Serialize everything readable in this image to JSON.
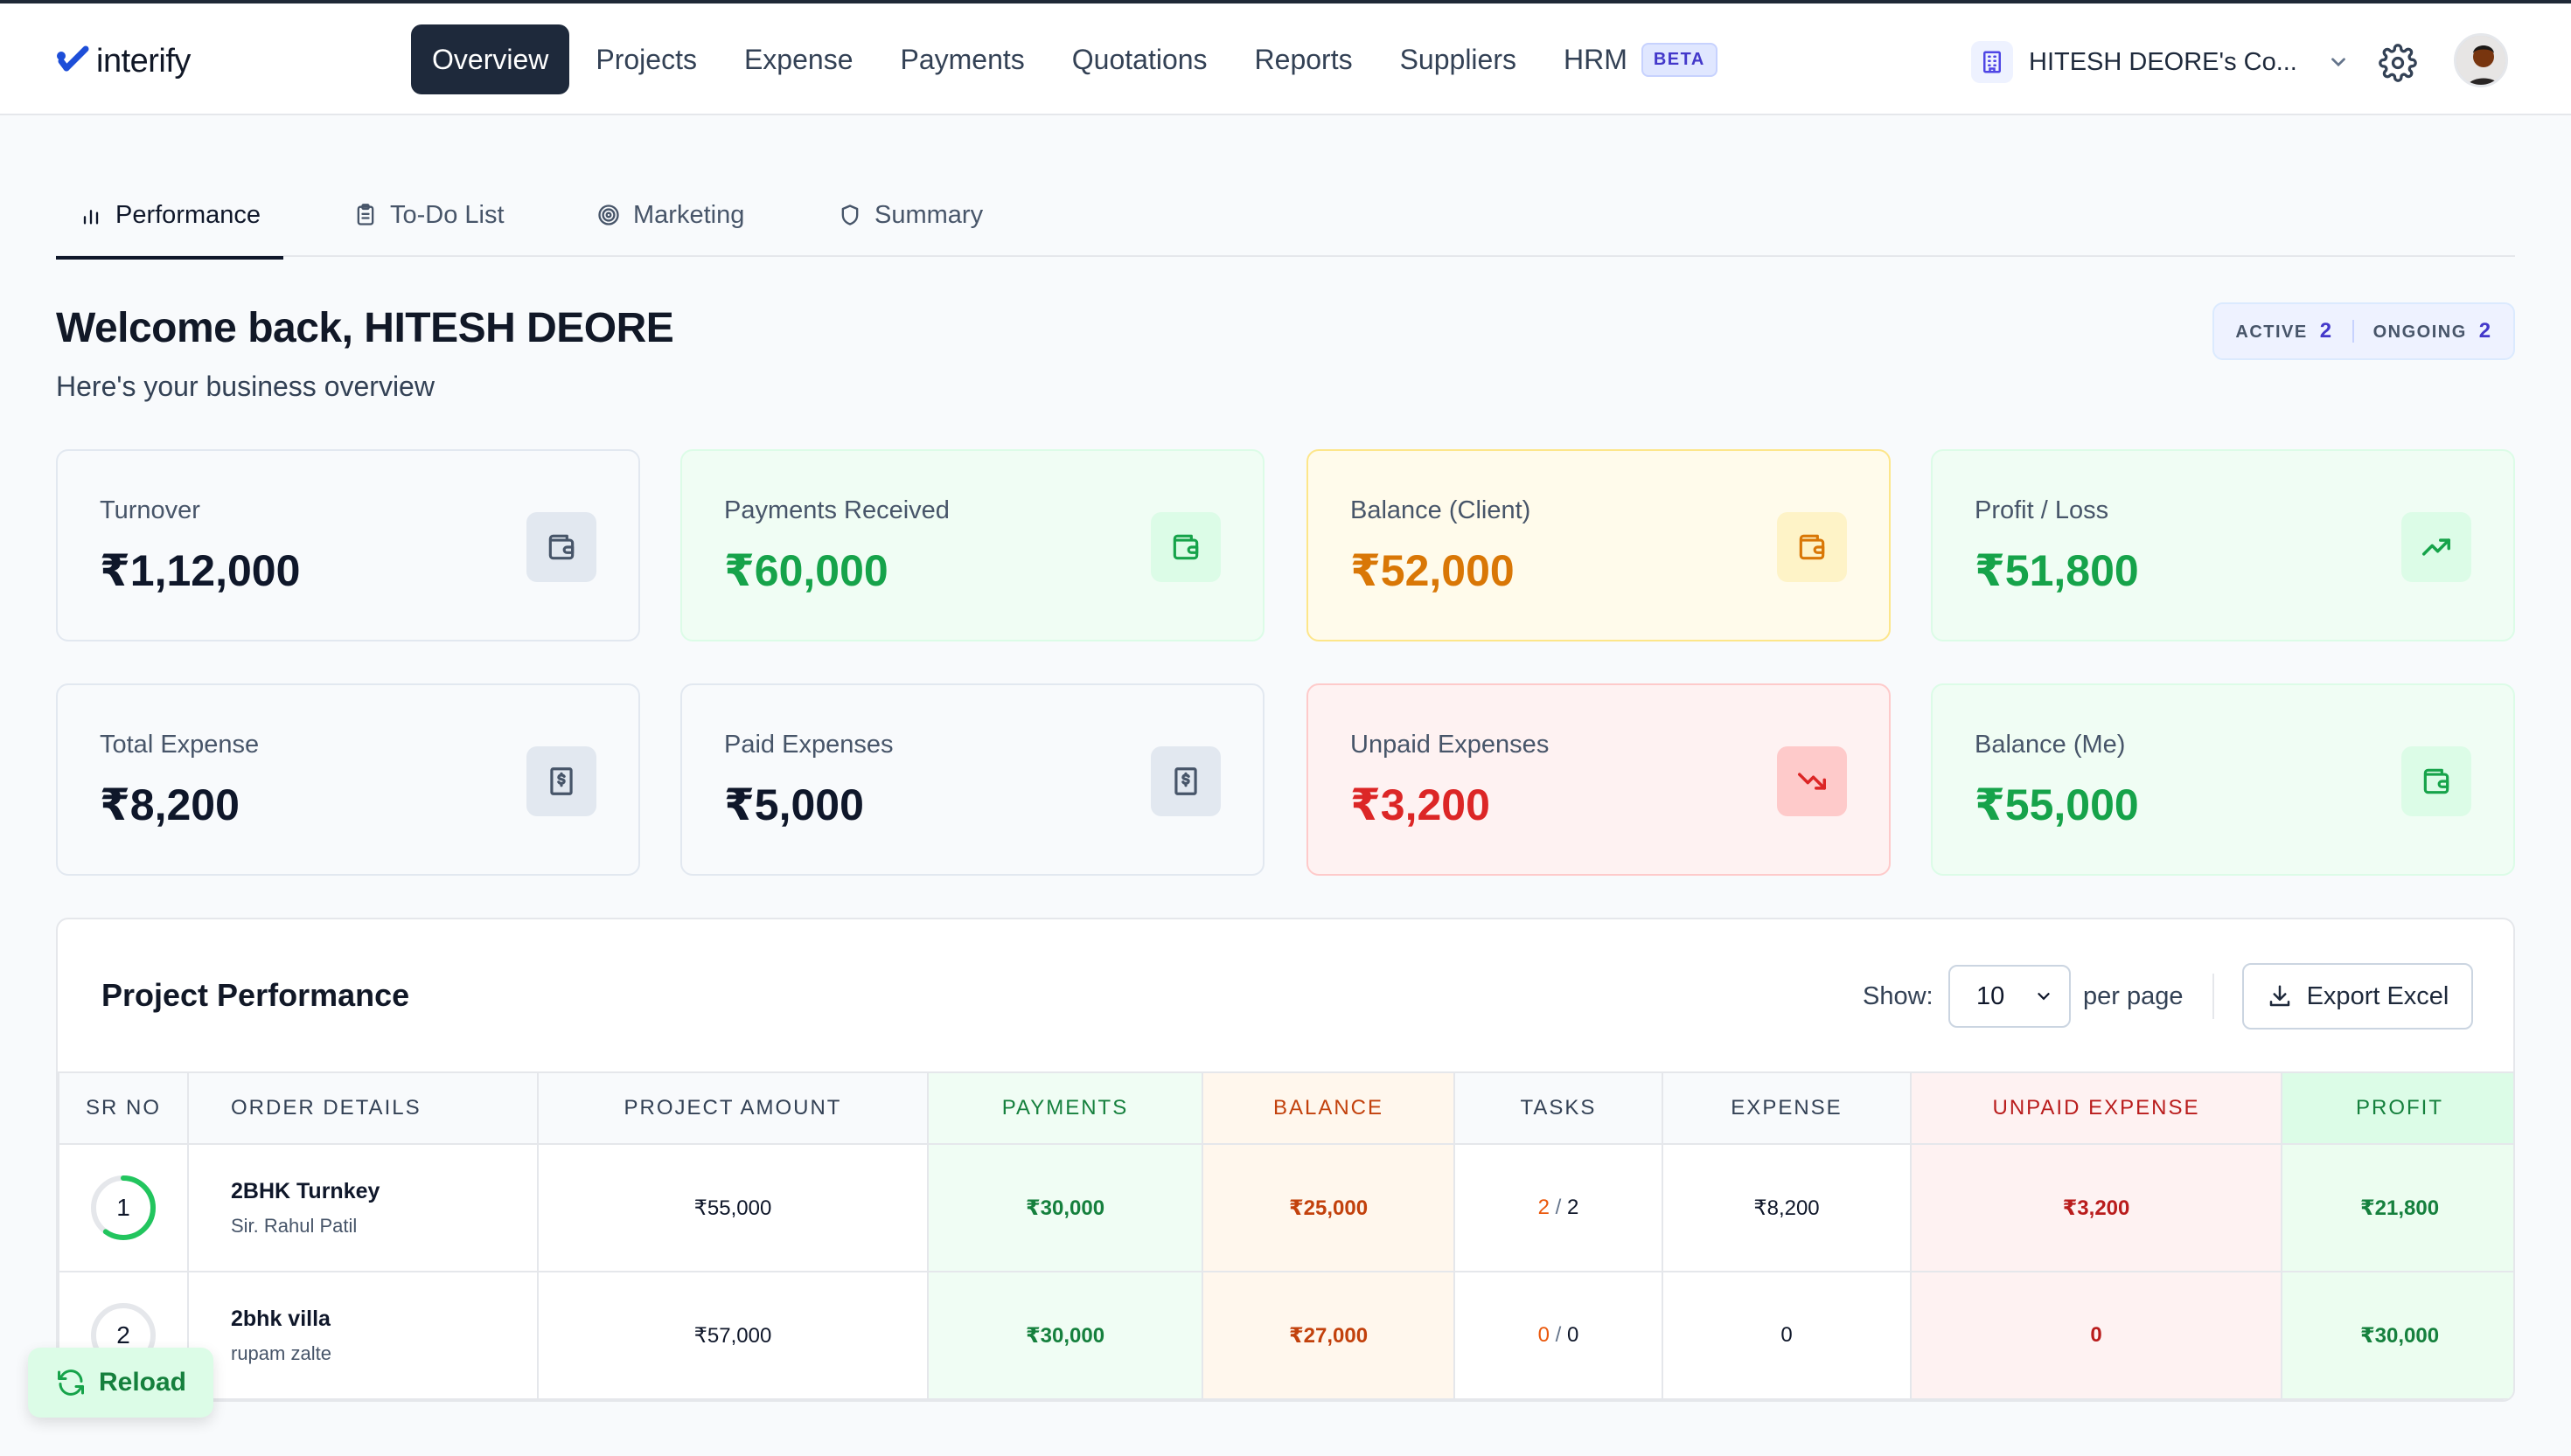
{
  "app": {
    "logo_text": "interify"
  },
  "nav": {
    "items": [
      {
        "label": "Overview"
      },
      {
        "label": "Projects"
      },
      {
        "label": "Expense"
      },
      {
        "label": "Payments"
      },
      {
        "label": "Quotations"
      },
      {
        "label": "Reports"
      },
      {
        "label": "Suppliers"
      },
      {
        "label": "HRM"
      }
    ],
    "active": "Overview",
    "hrm_badge": "BETA"
  },
  "company": {
    "name": "HITESH DEORE's Co..."
  },
  "tabs": [
    {
      "label": "Performance",
      "icon": "bar-chart-icon"
    },
    {
      "label": "To-Do List",
      "icon": "clipboard-icon"
    },
    {
      "label": "Marketing",
      "icon": "target-icon"
    },
    {
      "label": "Summary",
      "icon": "shield-icon"
    }
  ],
  "welcome": {
    "title": "Welcome back, HITESH DEORE",
    "subtitle": "Here's your business overview"
  },
  "status": {
    "active_label": "ACTIVE",
    "active_count": "2",
    "ongoing_label": "ONGOING",
    "ongoing_count": "2"
  },
  "cards": [
    {
      "label": "Turnover",
      "value": "₹1,12,000",
      "icon": "wallet-icon",
      "tone": "neutral"
    },
    {
      "label": "Payments Received",
      "value": "₹60,000",
      "icon": "wallet-icon",
      "tone": "green"
    },
    {
      "label": "Balance (Client)",
      "value": "₹52,000",
      "icon": "wallet-icon",
      "tone": "amber"
    },
    {
      "label": "Profit / Loss",
      "value": "₹51,800",
      "icon": "trending-up-icon",
      "tone": "green"
    },
    {
      "label": "Total Expense",
      "value": "₹8,200",
      "icon": "receipt-icon",
      "tone": "neutral"
    },
    {
      "label": "Paid Expenses",
      "value": "₹5,000",
      "icon": "receipt-icon",
      "tone": "neutral"
    },
    {
      "label": "Unpaid Expenses",
      "value": "₹3,200",
      "icon": "trending-down-icon",
      "tone": "red"
    },
    {
      "label": "Balance (Me)",
      "value": "₹55,000",
      "icon": "wallet-icon",
      "tone": "green"
    }
  ],
  "performance": {
    "title": "Project Performance",
    "show_label": "Show:",
    "per_page_value": "10",
    "per_page_label": "per page",
    "export_label": "Export Excel",
    "columns": [
      "SR NO",
      "ORDER DETAILS",
      "PROJECT AMOUNT",
      "PAYMENTS",
      "BALANCE",
      "TASKS",
      "EXPENSE",
      "UNPAID EXPENSE",
      "PROFIT"
    ],
    "rows": [
      {
        "sr": "1",
        "progress": 0.6,
        "name": "2BHK Turnkey",
        "client": "Sir. Rahul Patil",
        "amount": "₹55,000",
        "payments": "₹30,000",
        "balance": "₹25,000",
        "tasks_done": "2",
        "tasks_sep": "/",
        "tasks_total": "2",
        "expense": "₹8,200",
        "unpaid": "₹3,200",
        "profit": "₹21,800"
      },
      {
        "sr": "2",
        "progress": 0,
        "name": "2bhk villa",
        "client": "rupam zalte",
        "amount": "₹57,000",
        "payments": "₹30,000",
        "balance": "₹27,000",
        "tasks_done": "0",
        "tasks_sep": "/",
        "tasks_total": "0",
        "expense": "0",
        "unpaid": "0",
        "profit": "₹30,000"
      }
    ]
  },
  "reload": {
    "label": "Reload"
  },
  "colors": {
    "nav_active_bg": "#1e293b",
    "green": "#16a34a",
    "amber": "#d97706",
    "red": "#dc2626",
    "indigo": "#4338ca"
  }
}
